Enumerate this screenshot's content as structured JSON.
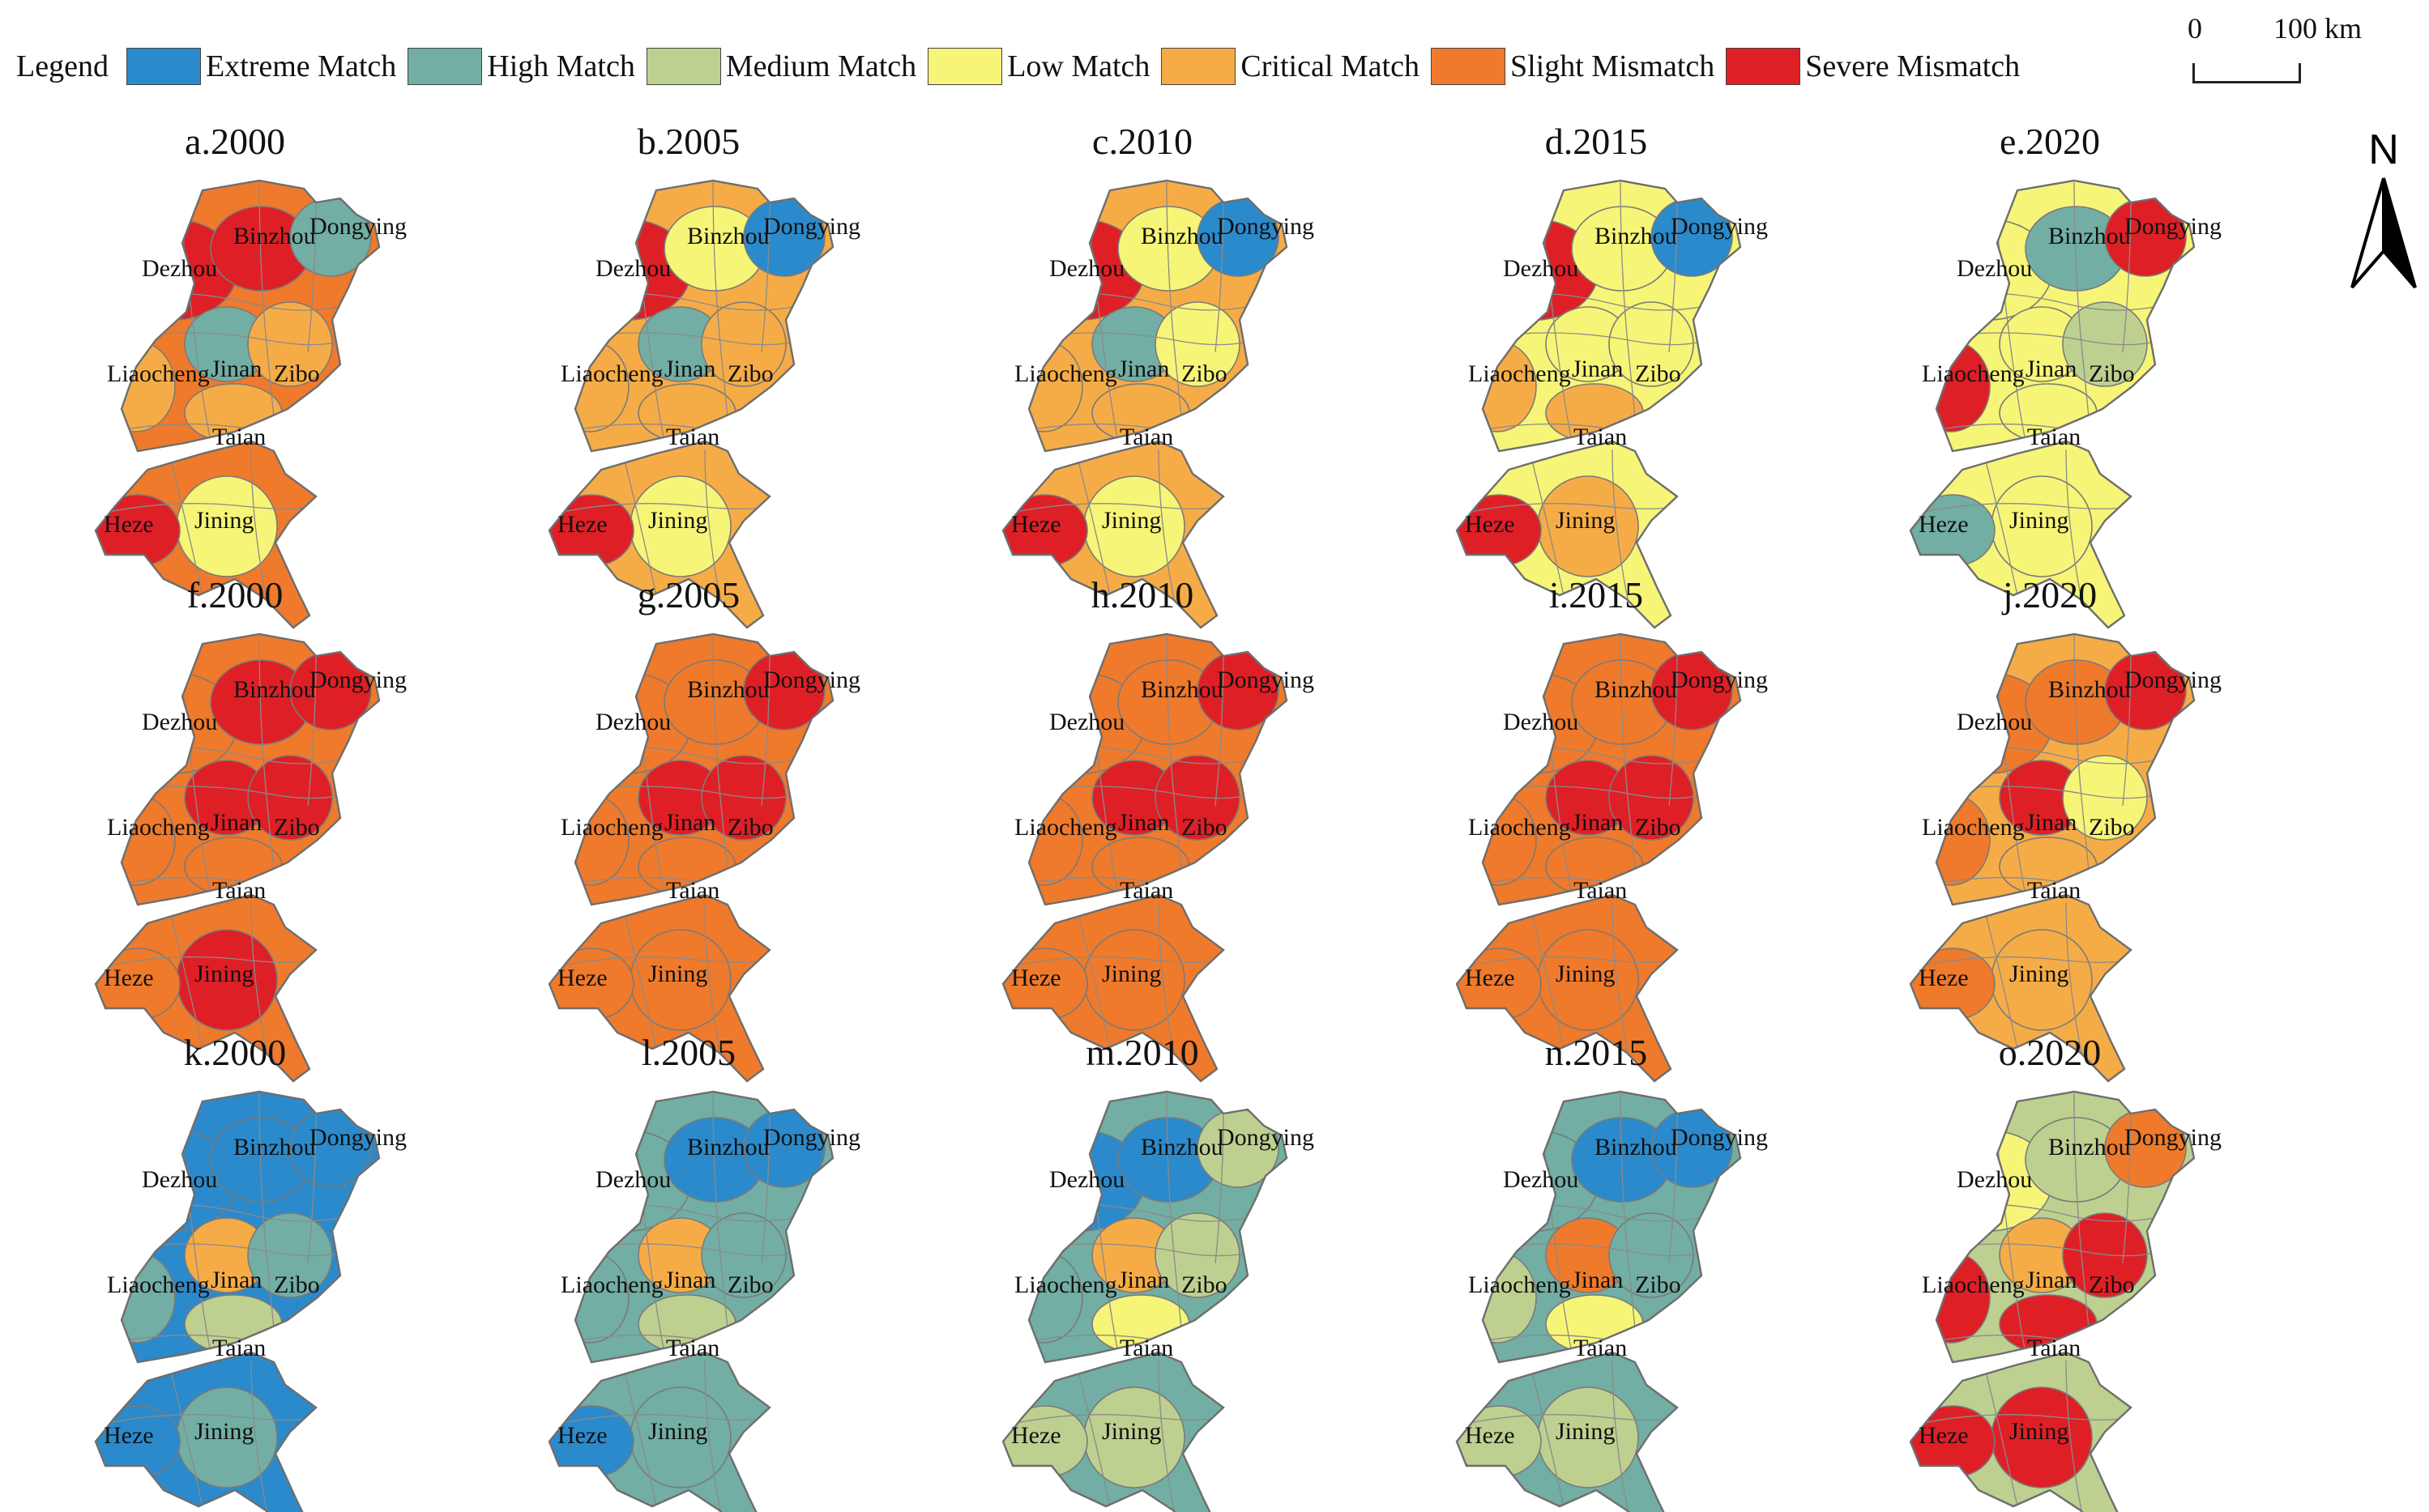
{
  "legend": {
    "title": "Legend",
    "items": [
      {
        "label": "Extreme Match",
        "color": "#2b8acb"
      },
      {
        "label": "High Match",
        "color": "#72aea3"
      },
      {
        "label": "Medium Match",
        "color": "#bed08f"
      },
      {
        "label": "Low Match",
        "color": "#f6f577"
      },
      {
        "label": "Critical Match",
        "color": "#f6ac46"
      },
      {
        "label": "Slight Mismatch",
        "color": "#ef7a2b"
      },
      {
        "label": "Severe Mismatch",
        "color": "#df1f26"
      }
    ]
  },
  "scale_bar": {
    "start": "0",
    "end": "100 km"
  },
  "north_arrow": {
    "label": "N"
  },
  "cities": [
    "Dezhou",
    "Binzhou",
    "Dongying",
    "Liaocheng",
    "Jinan",
    "Zibo",
    "Taian",
    "Jining",
    "Heze"
  ],
  "panels": [
    {
      "title": "a.2000",
      "row": 1,
      "col": 1,
      "dominant": "#ef7a2b",
      "regions": {
        "Dezhou": "#df1f26",
        "Binzhou": "#df1f26",
        "Dongying": "#72aea3",
        "Liaocheng": "#f6ac46",
        "Jinan": "#72aea3",
        "Zibo": "#f6ac46",
        "Taian": "#f6ac46",
        "Jining": "#f6f577",
        "Heze": "#df1f26"
      }
    },
    {
      "title": "b.2005",
      "row": 1,
      "col": 2,
      "dominant": "#f6ac46",
      "regions": {
        "Dezhou": "#df1f26",
        "Binzhou": "#f6f577",
        "Dongying": "#2b8acb",
        "Liaocheng": "#f6ac46",
        "Jinan": "#72aea3",
        "Zibo": "#f6ac46",
        "Taian": "#f6ac46",
        "Jining": "#f6f577",
        "Heze": "#df1f26"
      }
    },
    {
      "title": "c.2010",
      "row": 1,
      "col": 3,
      "dominant": "#f6ac46",
      "regions": {
        "Dezhou": "#df1f26",
        "Binzhou": "#f6f577",
        "Dongying": "#2b8acb",
        "Liaocheng": "#f6ac46",
        "Jinan": "#72aea3",
        "Zibo": "#f6f577",
        "Taian": "#f6ac46",
        "Jining": "#f6f577",
        "Heze": "#df1f26"
      }
    },
    {
      "title": "d.2015",
      "row": 1,
      "col": 4,
      "dominant": "#f6f577",
      "regions": {
        "Dezhou": "#df1f26",
        "Binzhou": "#f6f577",
        "Dongying": "#2b8acb",
        "Liaocheng": "#f6ac46",
        "Jinan": "#f6f577",
        "Zibo": "#f6f577",
        "Taian": "#f6ac46",
        "Jining": "#f6ac46",
        "Heze": "#df1f26"
      }
    },
    {
      "title": "e.2020",
      "row": 1,
      "col": 5,
      "dominant": "#f6f577",
      "regions": {
        "Dezhou": "#f6f577",
        "Binzhou": "#72aea3",
        "Dongying": "#df1f26",
        "Liaocheng": "#df1f26",
        "Jinan": "#f6f577",
        "Zibo": "#bed08f",
        "Taian": "#f6f577",
        "Jining": "#f6f577",
        "Heze": "#72aea3"
      }
    },
    {
      "title": "f.2000",
      "row": 2,
      "col": 1,
      "dominant": "#ef7a2b",
      "regions": {
        "Dezhou": "#ef7a2b",
        "Binzhou": "#df1f26",
        "Dongying": "#df1f26",
        "Liaocheng": "#ef7a2b",
        "Jinan": "#df1f26",
        "Zibo": "#df1f26",
        "Taian": "#ef7a2b",
        "Jining": "#df1f26",
        "Heze": "#ef7a2b"
      }
    },
    {
      "title": "g.2005",
      "row": 2,
      "col": 2,
      "dominant": "#ef7a2b",
      "regions": {
        "Dezhou": "#ef7a2b",
        "Binzhou": "#ef7a2b",
        "Dongying": "#df1f26",
        "Liaocheng": "#ef7a2b",
        "Jinan": "#df1f26",
        "Zibo": "#df1f26",
        "Taian": "#ef7a2b",
        "Jining": "#ef7a2b",
        "Heze": "#ef7a2b"
      }
    },
    {
      "title": "h.2010",
      "row": 2,
      "col": 3,
      "dominant": "#ef7a2b",
      "regions": {
        "Dezhou": "#ef7a2b",
        "Binzhou": "#ef7a2b",
        "Dongying": "#df1f26",
        "Liaocheng": "#ef7a2b",
        "Jinan": "#df1f26",
        "Zibo": "#df1f26",
        "Taian": "#ef7a2b",
        "Jining": "#ef7a2b",
        "Heze": "#ef7a2b"
      }
    },
    {
      "title": "i.2015",
      "row": 2,
      "col": 4,
      "dominant": "#ef7a2b",
      "regions": {
        "Dezhou": "#ef7a2b",
        "Binzhou": "#ef7a2b",
        "Dongying": "#df1f26",
        "Liaocheng": "#ef7a2b",
        "Jinan": "#df1f26",
        "Zibo": "#df1f26",
        "Taian": "#ef7a2b",
        "Jining": "#ef7a2b",
        "Heze": "#ef7a2b"
      }
    },
    {
      "title": "j.2020",
      "row": 2,
      "col": 5,
      "dominant": "#f6ac46",
      "regions": {
        "Dezhou": "#ef7a2b",
        "Binzhou": "#ef7a2b",
        "Dongying": "#df1f26",
        "Liaocheng": "#ef7a2b",
        "Jinan": "#df1f26",
        "Zibo": "#f6f577",
        "Taian": "#f6ac46",
        "Jining": "#f6ac46",
        "Heze": "#ef7a2b"
      }
    },
    {
      "title": "k.2000",
      "row": 3,
      "col": 1,
      "dominant": "#2b8acb",
      "regions": {
        "Dezhou": "#2b8acb",
        "Binzhou": "#2b8acb",
        "Dongying": "#2b8acb",
        "Liaocheng": "#72aea3",
        "Jinan": "#f6ac46",
        "Zibo": "#72aea3",
        "Taian": "#bed08f",
        "Jining": "#72aea3",
        "Heze": "#2b8acb"
      }
    },
    {
      "title": "l.2005",
      "row": 3,
      "col": 2,
      "dominant": "#72aea3",
      "regions": {
        "Dezhou": "#72aea3",
        "Binzhou": "#2b8acb",
        "Dongying": "#2b8acb",
        "Liaocheng": "#72aea3",
        "Jinan": "#f6ac46",
        "Zibo": "#72aea3",
        "Taian": "#bed08f",
        "Jining": "#72aea3",
        "Heze": "#2b8acb"
      }
    },
    {
      "title": "m.2010",
      "row": 3,
      "col": 3,
      "dominant": "#72aea3",
      "regions": {
        "Dezhou": "#2b8acb",
        "Binzhou": "#2b8acb",
        "Dongying": "#bed08f",
        "Liaocheng": "#72aea3",
        "Jinan": "#f6ac46",
        "Zibo": "#bed08f",
        "Taian": "#f6f577",
        "Jining": "#bed08f",
        "Heze": "#bed08f"
      }
    },
    {
      "title": "n.2015",
      "row": 3,
      "col": 4,
      "dominant": "#72aea3",
      "regions": {
        "Dezhou": "#72aea3",
        "Binzhou": "#2b8acb",
        "Dongying": "#2b8acb",
        "Liaocheng": "#bed08f",
        "Jinan": "#ef7a2b",
        "Zibo": "#72aea3",
        "Taian": "#f6f577",
        "Jining": "#bed08f",
        "Heze": "#bed08f"
      }
    },
    {
      "title": "o.2020",
      "row": 3,
      "col": 5,
      "dominant": "#bed08f",
      "regions": {
        "Dezhou": "#f6f577",
        "Binzhou": "#bed08f",
        "Dongying": "#ef7a2b",
        "Liaocheng": "#df1f26",
        "Jinan": "#f6ac46",
        "Zibo": "#df1f26",
        "Taian": "#df1f26",
        "Jining": "#df1f26",
        "Heze": "#df1f26"
      }
    }
  ]
}
